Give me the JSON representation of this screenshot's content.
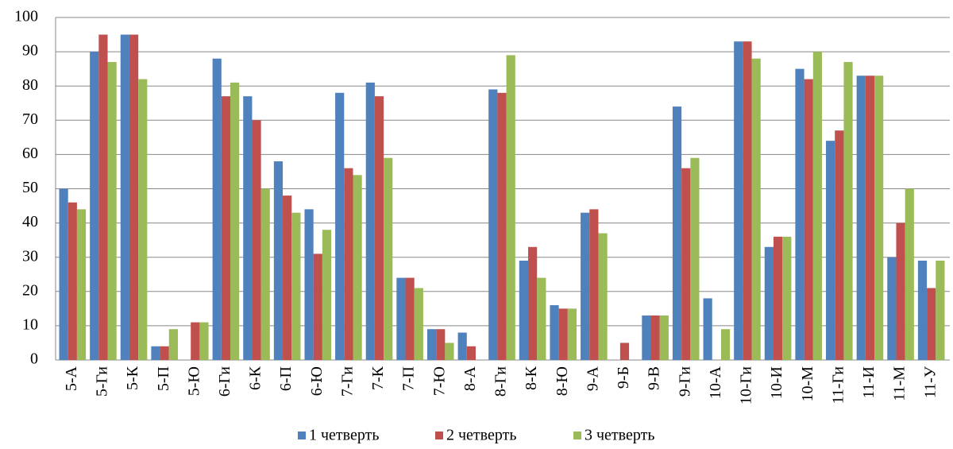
{
  "chart_data": {
    "type": "bar",
    "categories": [
      "5-А",
      "5-Ги",
      "5-К",
      "5-П",
      "5-Ю",
      "6-Ги",
      "6-К",
      "6-П",
      "6-Ю",
      "7-Ги",
      "7-К",
      "7-П",
      "7-Ю",
      "8-А",
      "8-Ги",
      "8-К",
      "8-Ю",
      "9-А",
      "9-Б",
      "9-В",
      "9-Ги",
      "10-А",
      "10-Ги",
      "10-И",
      "10-М",
      "11-Ги",
      "11-И",
      "11-М",
      "11-У"
    ],
    "series": [
      {
        "name": "1 четверть",
        "color": "#4f81bd",
        "values": [
          50,
          90,
          95,
          4,
          0,
          88,
          77,
          58,
          44,
          78,
          81,
          24,
          9,
          8,
          79,
          29,
          16,
          43,
          0,
          13,
          74,
          18,
          93,
          33,
          85,
          64,
          83,
          30,
          29
        ]
      },
      {
        "name": "2 четверть",
        "color": "#c0504d",
        "values": [
          46,
          95,
          95,
          4,
          11,
          77,
          70,
          48,
          31,
          56,
          77,
          24,
          9,
          4,
          78,
          33,
          15,
          44,
          5,
          13,
          56,
          0,
          93,
          36,
          82,
          67,
          83,
          40,
          21
        ]
      },
      {
        "name": "3 четверть",
        "color": "#9bbb59",
        "values": [
          44,
          87,
          82,
          9,
          11,
          81,
          50,
          43,
          38,
          54,
          59,
          21,
          5,
          0,
          89,
          24,
          15,
          37,
          0,
          13,
          59,
          9,
          88,
          36,
          90,
          87,
          83,
          50,
          29
        ]
      }
    ],
    "ylim": [
      0,
      100
    ],
    "yticks": [
      0,
      10,
      20,
      30,
      40,
      50,
      60,
      70,
      80,
      90,
      100
    ],
    "grid": true,
    "legend": "bottom"
  }
}
